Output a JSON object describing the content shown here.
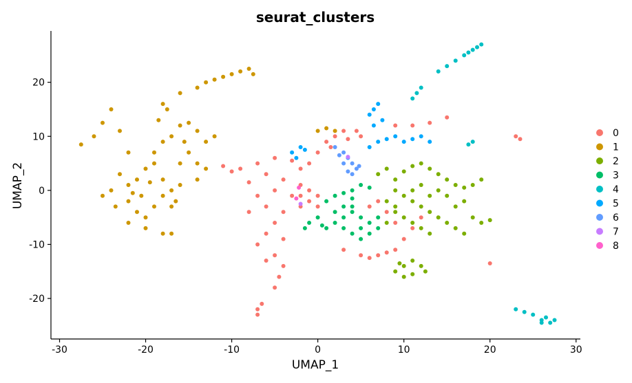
{
  "chart_data": {
    "type": "scatter",
    "title": "seurat_clusters",
    "xlabel": "UMAP_1",
    "ylabel": "UMAP_2",
    "xlim": [
      -31,
      30.5
    ],
    "ylim": [
      -27.5,
      29.5
    ],
    "x_ticks": [
      -30,
      -20,
      -10,
      0,
      10,
      20,
      30
    ],
    "y_ticks": [
      -20,
      -10,
      0,
      10,
      20
    ],
    "grid": false,
    "legend_position": "right",
    "series": [
      {
        "name": "0",
        "color": "#F8766D",
        "points": [
          [
            -11,
            4.5
          ],
          [
            -9,
            4
          ],
          [
            -7,
            5
          ],
          [
            -5,
            6
          ],
          [
            -3,
            5.5
          ],
          [
            -2,
            4
          ],
          [
            -4,
            2
          ],
          [
            -6,
            3
          ],
          [
            -8,
            1.5
          ],
          [
            -10,
            3.5
          ],
          [
            -5,
            0
          ],
          [
            -3,
            -1
          ],
          [
            -7,
            -1
          ],
          [
            -6,
            -3
          ],
          [
            -4,
            -4
          ],
          [
            -8,
            -4
          ],
          [
            -5,
            -6
          ],
          [
            -6,
            -8
          ],
          [
            -4,
            -9
          ],
          [
            -7,
            -10
          ],
          [
            -5,
            -12
          ],
          [
            -4,
            -14
          ],
          [
            -6,
            -13
          ],
          [
            -4.5,
            -16
          ],
          [
            -5,
            -18
          ],
          [
            -7,
            -22
          ],
          [
            -7,
            -23
          ],
          [
            -6.5,
            -21
          ],
          [
            -1,
            5
          ],
          [
            0,
            7
          ],
          [
            1,
            9
          ],
          [
            2,
            10
          ],
          [
            3,
            11
          ],
          [
            4.5,
            11
          ],
          [
            5,
            10
          ],
          [
            3.5,
            9.5
          ],
          [
            1.5,
            8
          ],
          [
            -2,
            -1
          ],
          [
            -1,
            -2
          ],
          [
            0,
            -3
          ],
          [
            -2,
            -3
          ],
          [
            0,
            -1
          ],
          [
            -1,
            0
          ],
          [
            -2,
            1
          ],
          [
            3,
            -11
          ],
          [
            5,
            -12
          ],
          [
            6,
            -12.5
          ],
          [
            7,
            -12
          ],
          [
            8,
            -11.5
          ],
          [
            9,
            -11
          ],
          [
            10,
            -9
          ],
          [
            11,
            -7
          ],
          [
            12,
            -5
          ],
          [
            9,
            12
          ],
          [
            11,
            12
          ],
          [
            13,
            12.5
          ],
          [
            15,
            13.5
          ],
          [
            20,
            -13.5
          ],
          [
            23,
            10
          ],
          [
            23.5,
            9.5
          ],
          [
            6,
            -3
          ],
          [
            7,
            -2
          ],
          [
            8,
            -4
          ],
          [
            9,
            -6
          ]
        ]
      },
      {
        "name": "1",
        "color": "#CD9600",
        "points": [
          [
            -27.5,
            8.5
          ],
          [
            -26,
            10
          ],
          [
            -25,
            12.5
          ],
          [
            -24,
            15
          ],
          [
            -23,
            11
          ],
          [
            -22,
            7
          ],
          [
            -23,
            3
          ],
          [
            -24,
            0
          ],
          [
            -25,
            -1
          ],
          [
            -22,
            -2
          ],
          [
            -21,
            -4
          ],
          [
            -20,
            -5
          ],
          [
            -19,
            -3
          ],
          [
            -18,
            -1
          ],
          [
            -17,
            -3
          ],
          [
            -17,
            0
          ],
          [
            -18,
            2
          ],
          [
            -19,
            5
          ],
          [
            -20,
            4
          ],
          [
            -21,
            2
          ],
          [
            -22,
            1
          ],
          [
            -19,
            7
          ],
          [
            -18,
            9
          ],
          [
            -17,
            10
          ],
          [
            -16,
            12
          ],
          [
            -15,
            12.5
          ],
          [
            -14,
            11
          ],
          [
            -13,
            9
          ],
          [
            -12,
            10
          ],
          [
            -15,
            7
          ],
          [
            -16,
            5
          ],
          [
            -14,
            5
          ],
          [
            -13,
            4
          ],
          [
            -14,
            2
          ],
          [
            -16,
            1
          ],
          [
            -18.5,
            13
          ],
          [
            -17.5,
            15
          ],
          [
            -18,
            16
          ],
          [
            -16,
            18
          ],
          [
            -14,
            19
          ],
          [
            -13,
            20
          ],
          [
            -12,
            20.5
          ],
          [
            -11,
            21
          ],
          [
            -10,
            21.5
          ],
          [
            -9,
            22
          ],
          [
            -8,
            22.5
          ],
          [
            -7.5,
            21.5
          ],
          [
            -20,
            -7
          ],
          [
            -22,
            -6
          ],
          [
            -18,
            -8
          ],
          [
            -17,
            -8
          ],
          [
            -23.5,
            -3
          ],
          [
            -20.5,
            -1
          ],
          [
            -19.5,
            1.5
          ],
          [
            -21.5,
            -0.5
          ],
          [
            -15.5,
            9
          ],
          [
            -16.5,
            -2
          ],
          [
            0,
            11
          ],
          [
            1,
            11.5
          ],
          [
            2,
            11
          ]
        ]
      },
      {
        "name": "2",
        "color": "#7CAE00",
        "points": [
          [
            7,
            3
          ],
          [
            8,
            4
          ],
          [
            9,
            2
          ],
          [
            10,
            3.5
          ],
          [
            11,
            4.5
          ],
          [
            12,
            5
          ],
          [
            13,
            4
          ],
          [
            14,
            3
          ],
          [
            15,
            2
          ],
          [
            16,
            1
          ],
          [
            17,
            0.5
          ],
          [
            18,
            1
          ],
          [
            19,
            2
          ],
          [
            9,
            0
          ],
          [
            10,
            -1
          ],
          [
            11,
            -2
          ],
          [
            12,
            -3
          ],
          [
            13,
            -4
          ],
          [
            14,
            -5
          ],
          [
            15,
            -6
          ],
          [
            16,
            -7
          ],
          [
            17,
            -8
          ],
          [
            11,
            0
          ],
          [
            12,
            1
          ],
          [
            13,
            -1
          ],
          [
            14,
            0
          ],
          [
            15,
            -1
          ],
          [
            8,
            -2
          ],
          [
            9,
            -3
          ],
          [
            10,
            -5
          ],
          [
            11,
            -6
          ],
          [
            12,
            -7
          ],
          [
            13,
            -8
          ],
          [
            18,
            -5
          ],
          [
            19,
            -6
          ],
          [
            20,
            -5.5
          ],
          [
            17,
            -2
          ],
          [
            16,
            -3
          ],
          [
            9,
            -15
          ],
          [
            10,
            -14
          ],
          [
            11,
            -13
          ],
          [
            12,
            -14
          ],
          [
            10,
            -16
          ],
          [
            11,
            -15.5
          ],
          [
            9.5,
            -13.5
          ],
          [
            12.5,
            -15
          ],
          [
            9,
            -4
          ],
          [
            8,
            -6
          ]
        ]
      },
      {
        "name": "3",
        "color": "#00BE67",
        "points": [
          [
            -1,
            -6
          ],
          [
            0,
            -5
          ],
          [
            0.5,
            -6.5
          ],
          [
            1,
            -7
          ],
          [
            2,
            -6
          ],
          [
            3,
            -5
          ],
          [
            4,
            -4
          ],
          [
            5,
            -5
          ],
          [
            6,
            -6
          ],
          [
            7,
            -5
          ],
          [
            3,
            -7
          ],
          [
            4,
            -8
          ],
          [
            5,
            -7
          ],
          [
            2,
            -4
          ],
          [
            3,
            -3
          ],
          [
            4,
            -3
          ],
          [
            1,
            -2
          ],
          [
            2,
            -1
          ],
          [
            3,
            -0.5
          ],
          [
            4,
            0
          ],
          [
            5,
            1
          ],
          [
            6,
            0.5
          ],
          [
            4,
            -1.5
          ],
          [
            6,
            -8
          ],
          [
            7,
            -7
          ],
          [
            5,
            -9
          ],
          [
            -1.5,
            -7
          ]
        ]
      },
      {
        "name": "4",
        "color": "#00BFC4",
        "points": [
          [
            14,
            22
          ],
          [
            15,
            23
          ],
          [
            16,
            24
          ],
          [
            17,
            25
          ],
          [
            18,
            26
          ],
          [
            18.5,
            26.5
          ],
          [
            19,
            27
          ],
          [
            17.5,
            25.5
          ],
          [
            11,
            17
          ],
          [
            11.5,
            18
          ],
          [
            12,
            19
          ],
          [
            17.5,
            8.5
          ],
          [
            18,
            9
          ],
          [
            23,
            -22
          ],
          [
            24,
            -22.5
          ],
          [
            25,
            -23
          ],
          [
            26,
            -24
          ],
          [
            26.5,
            -23.5
          ],
          [
            27,
            -24.5
          ],
          [
            27.5,
            -24
          ],
          [
            26,
            -24.5
          ]
        ]
      },
      {
        "name": "5",
        "color": "#00A9FF",
        "points": [
          [
            -3,
            7
          ],
          [
            -2,
            8
          ],
          [
            -1.5,
            7.5
          ],
          [
            -2.5,
            6
          ],
          [
            6,
            14
          ],
          [
            6.5,
            15
          ],
          [
            7,
            16
          ],
          [
            7.5,
            13
          ],
          [
            6.5,
            12
          ],
          [
            6,
            8
          ],
          [
            7,
            9
          ],
          [
            8,
            9.5
          ],
          [
            9,
            10
          ],
          [
            10,
            9
          ],
          [
            11,
            9.5
          ],
          [
            12,
            10
          ],
          [
            13,
            9
          ]
        ]
      },
      {
        "name": "6",
        "color": "#619CFF",
        "points": [
          [
            2,
            8
          ],
          [
            3,
            7
          ],
          [
            3.5,
            6
          ],
          [
            4,
            5
          ],
          [
            4.5,
            4
          ],
          [
            4,
            3
          ],
          [
            3.5,
            3.5
          ],
          [
            3,
            5
          ],
          [
            2.5,
            6.5
          ],
          [
            4.8,
            4.5
          ]
        ]
      },
      {
        "name": "7",
        "color": "#C77CFF",
        "points": [
          [
            -2,
            -2.5
          ],
          [
            3.5,
            6.2
          ]
        ]
      },
      {
        "name": "8",
        "color": "#FF61CC",
        "points": [
          [
            -2.5,
            -1.5
          ],
          [
            -2.2,
            0.5
          ]
        ]
      }
    ]
  }
}
